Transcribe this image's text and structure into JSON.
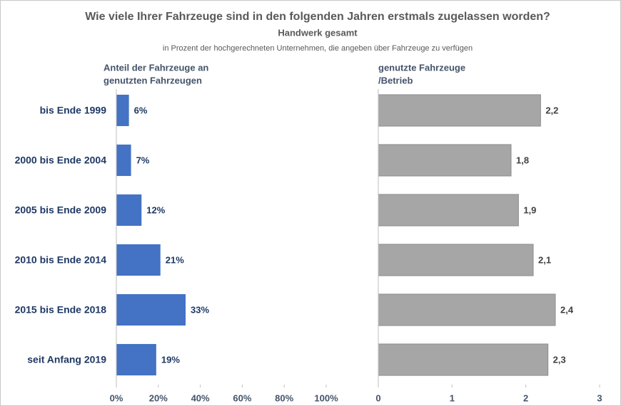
{
  "title": "Wie viele Ihrer Fahrzeuge sind in den folgenden Jahren erstmals zugelassen worden?",
  "subtitle": "Handwerk gesamt",
  "note": "in Prozent der hochgerechneten Unternehmen, die angeben über Fahrzeuge zu verfügen",
  "chart_data": [
    {
      "type": "barh",
      "axis_title": [
        "Anteil der Fahrzeuge an",
        "genutzten Fahrzeugen"
      ],
      "categories": [
        "bis Ende 1999",
        "2000 bis Ende 2004",
        "2005 bis Ende 2009",
        "2010 bis Ende 2014",
        "2015 bis Ende 2018",
        "seit Anfang 2019"
      ],
      "values": [
        6,
        7,
        12,
        21,
        33,
        19
      ],
      "value_labels": [
        "6%",
        "7%",
        "12%",
        "21%",
        "33%",
        "19%"
      ],
      "color": "#4472c4",
      "xlim": [
        0,
        100
      ],
      "xticks": [
        {
          "value": 0,
          "label": "0%"
        },
        {
          "value": 20,
          "label": "20%"
        },
        {
          "value": 40,
          "label": "40%"
        },
        {
          "value": 60,
          "label": "60%"
        },
        {
          "value": 80,
          "label": "80%"
        },
        {
          "value": 100,
          "label": "100%"
        }
      ]
    },
    {
      "type": "barh",
      "axis_title": [
        "genutzte Fahrzeuge",
        "/Betrieb"
      ],
      "values": [
        2.2,
        1.8,
        1.9,
        2.1,
        2.4,
        2.3
      ],
      "value_labels": [
        "2,2",
        "1,8",
        "1,9",
        "2,1",
        "2,4",
        "2,3"
      ],
      "color": "#a6a6a6",
      "xlim": [
        0,
        3
      ],
      "xticks": [
        0,
        1,
        2,
        3
      ]
    }
  ]
}
